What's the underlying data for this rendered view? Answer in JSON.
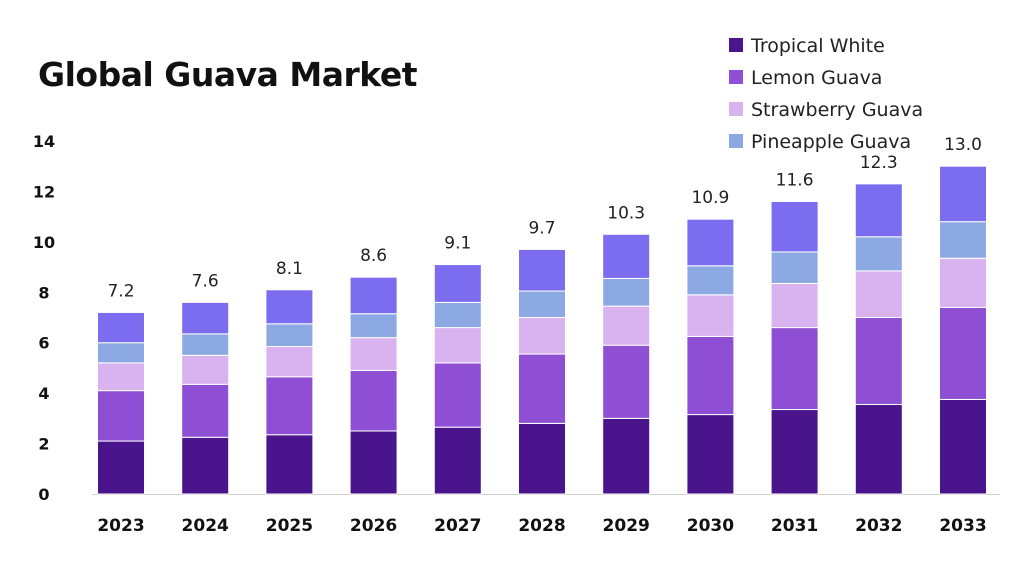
{
  "chart_data": {
    "type": "bar",
    "stacked": true,
    "title": "Global Guava Market",
    "xlabel": "",
    "ylabel": "",
    "ylim": [
      0,
      14
    ],
    "yticks": [
      0,
      2,
      4,
      6,
      8,
      10,
      12,
      14
    ],
    "legend_position": "top-right",
    "categories": [
      "2023",
      "2024",
      "2025",
      "2026",
      "2027",
      "2028",
      "2029",
      "2030",
      "2031",
      "2032",
      "2033"
    ],
    "series": [
      {
        "name": "Tropical White",
        "color": "#4a148c",
        "values": [
          2.1,
          2.25,
          2.35,
          2.5,
          2.65,
          2.8,
          3.0,
          3.15,
          3.35,
          3.55,
          3.75
        ]
      },
      {
        "name": "Lemon Guava",
        "color": "#8e4fd4",
        "values": [
          2.0,
          2.1,
          2.3,
          2.4,
          2.55,
          2.75,
          2.9,
          3.1,
          3.25,
          3.45,
          3.65
        ]
      },
      {
        "name": "Strawberry Guava",
        "color": "#d8b3f0",
        "values": [
          1.1,
          1.15,
          1.2,
          1.3,
          1.4,
          1.45,
          1.55,
          1.65,
          1.75,
          1.85,
          1.95
        ]
      },
      {
        "name": "Pineapple Guava",
        "color": "#8da9e3",
        "values": [
          0.8,
          0.85,
          0.9,
          0.95,
          1.0,
          1.05,
          1.1,
          1.15,
          1.25,
          1.35,
          1.45
        ]
      },
      {
        "name": "",
        "color": "#7b6cf0",
        "values": [
          1.2,
          1.25,
          1.35,
          1.45,
          1.5,
          1.65,
          1.75,
          1.85,
          2.0,
          2.1,
          2.2
        ]
      }
    ],
    "totals": [
      "7.2",
      "7.6",
      "8.1",
      "8.6",
      "9.1",
      "9.7",
      "10.3",
      "10.9",
      "11.6",
      "12.3",
      "13.0"
    ]
  }
}
